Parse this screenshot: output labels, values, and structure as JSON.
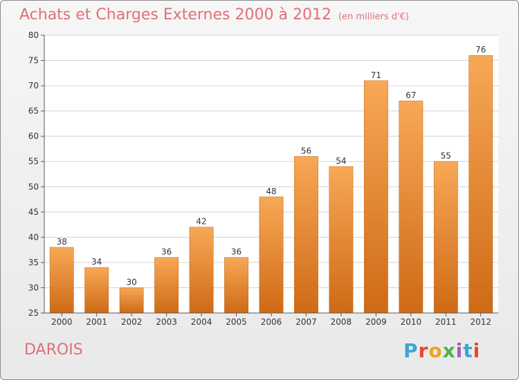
{
  "header": {
    "title": "Achats et Charges Externes 2000 à 2012",
    "unit": "(en milliers d'€)"
  },
  "footer": {
    "place": "DAROIS",
    "brand": "Proxiti"
  },
  "colors": {
    "bar_top": "#f7a856",
    "bar_bottom": "#cf6a16",
    "title": "#e07078",
    "grid": "#d2d2d2"
  },
  "chart_data": {
    "type": "bar",
    "title": "Achats et Charges Externes 2000 à 2012",
    "subtitle": "(en milliers d'€)",
    "xlabel": "",
    "ylabel": "",
    "categories": [
      "2000",
      "2001",
      "2002",
      "2003",
      "2004",
      "2005",
      "2006",
      "2007",
      "2008",
      "2009",
      "2010",
      "2011",
      "2012"
    ],
    "values": [
      38,
      34,
      30,
      36,
      42,
      36,
      48,
      56,
      54,
      71,
      67,
      55,
      76
    ],
    "data_labels": [
      "38",
      "34",
      "30",
      "36",
      "42",
      "36",
      "48",
      "56",
      "54",
      "71",
      "67",
      "55",
      "76"
    ],
    "ylim": [
      25,
      80
    ],
    "yticks": [
      25,
      30,
      35,
      40,
      45,
      50,
      55,
      60,
      65,
      70,
      75,
      80
    ],
    "grid": true
  }
}
